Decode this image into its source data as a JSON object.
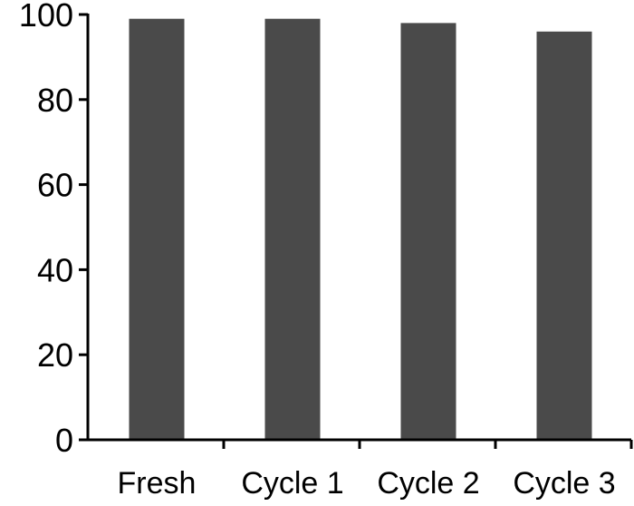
{
  "chart_data": {
    "type": "bar",
    "categories": [
      "Fresh",
      "Cycle 1",
      "Cycle 2",
      "Cycle 3"
    ],
    "values": [
      99,
      99,
      98,
      96
    ],
    "title": "",
    "xlabel": "",
    "ylabel": "",
    "ylim": [
      0,
      100
    ],
    "yticks": [
      "0",
      "20",
      "40",
      "60",
      "80",
      "100"
    ],
    "grid": false,
    "bar_color": "#4a4a4a",
    "axis_color": "#000000"
  }
}
